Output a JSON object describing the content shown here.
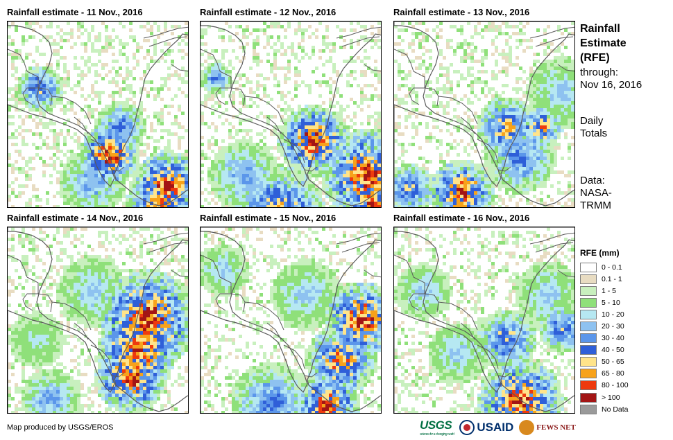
{
  "panels": [
    {
      "title": "Rainfall estimate - 11 Nov., 2016",
      "rain_pattern": "day-11"
    },
    {
      "title": "Rainfall estimate - 12 Nov., 2016",
      "rain_pattern": "day-12"
    },
    {
      "title": "Rainfall estimate - 13 Nov., 2016",
      "rain_pattern": "day-13"
    },
    {
      "title": "Rainfall estimate - 14 Nov., 2016",
      "rain_pattern": "day-14"
    },
    {
      "title": "Rainfall estimate - 15 Nov., 2016",
      "rain_pattern": "day-15"
    },
    {
      "title": "Rainfall estimate - 16 Nov., 2016",
      "rain_pattern": "day-16"
    }
  ],
  "side": {
    "title_line1": "Rainfall",
    "title_line2": "Estimate",
    "title_line3": "(RFE)",
    "through_label": "through:",
    "through_date": "Nov 16, 2016",
    "period_line1": "Daily",
    "period_line2": "Totals",
    "source_line1": "Data:",
    "source_line2": "NASA-",
    "source_line3": "TRMM"
  },
  "legend": {
    "title": "RFE (mm)",
    "classes": [
      {
        "label": "0 - 0.1",
        "color": "#ffffff"
      },
      {
        "label": "0.1 - 1",
        "color": "#e8dcc2"
      },
      {
        "label": "1 - 5",
        "color": "#c8f0be"
      },
      {
        "label": "5 - 10",
        "color": "#8fe07a"
      },
      {
        "label": "10 - 20",
        "color": "#b6e8f2"
      },
      {
        "label": "20 - 30",
        "color": "#8ec2f0"
      },
      {
        "label": "30 - 40",
        "color": "#5b96ea"
      },
      {
        "label": "40 - 50",
        "color": "#2f5fd8"
      },
      {
        "label": "50 - 65",
        "color": "#ffe48a"
      },
      {
        "label": "65 - 80",
        "color": "#f7a21b"
      },
      {
        "label": "80 - 100",
        "color": "#ee3a0e"
      },
      {
        "label": "> 100",
        "color": "#a31515"
      },
      {
        "label": "No Data",
        "color": "#9a9a9a"
      }
    ]
  },
  "footer": {
    "credit": "Map produced by USGS/EROS",
    "logos": {
      "usgs": "USGS",
      "usgs_tagline": "science for a changing world",
      "usaid": "USAID",
      "fews": "FEWS NET"
    }
  }
}
